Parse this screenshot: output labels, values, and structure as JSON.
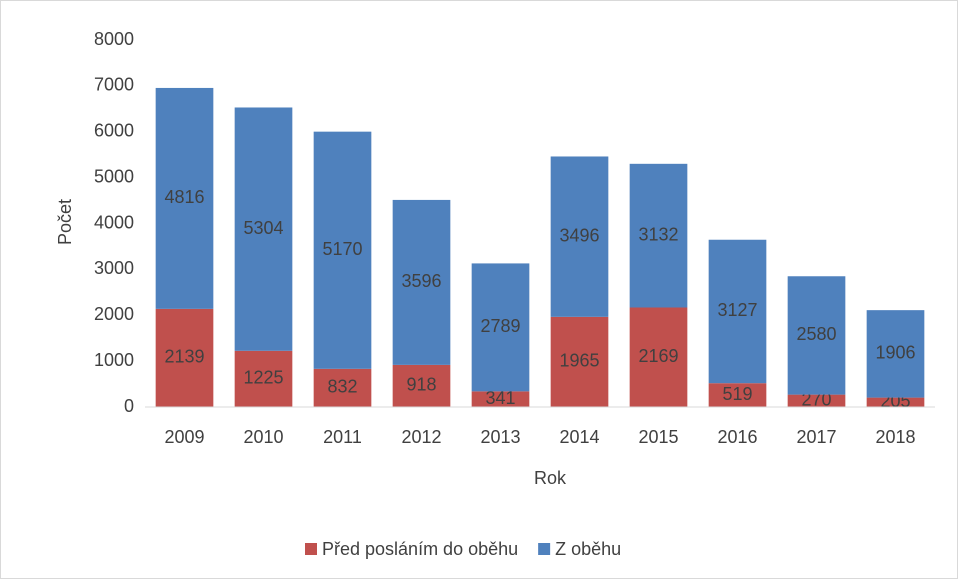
{
  "chart_data": {
    "type": "stacked_bar",
    "x_label": "Rok",
    "y_label": "Počet",
    "categories": [
      "2009",
      "2010",
      "2011",
      "2012",
      "2013",
      "2014",
      "2015",
      "2016",
      "2017",
      "2018"
    ],
    "series": [
      {
        "name": "Před posláním do oběhu",
        "color": "#c0504d",
        "values": [
          2139,
          1225,
          832,
          918,
          341,
          1965,
          2169,
          519,
          270,
          205
        ]
      },
      {
        "name": "Z oběhu",
        "color": "#4f81bd",
        "values": [
          4816,
          5304,
          5170,
          3596,
          2789,
          3496,
          3132,
          3127,
          2580,
          1906
        ]
      }
    ],
    "ylim": [
      0,
      8000
    ],
    "yticks": [
      0,
      1000,
      2000,
      3000,
      4000,
      5000,
      6000,
      7000,
      8000
    ],
    "grid": false,
    "legend": "bottom"
  }
}
